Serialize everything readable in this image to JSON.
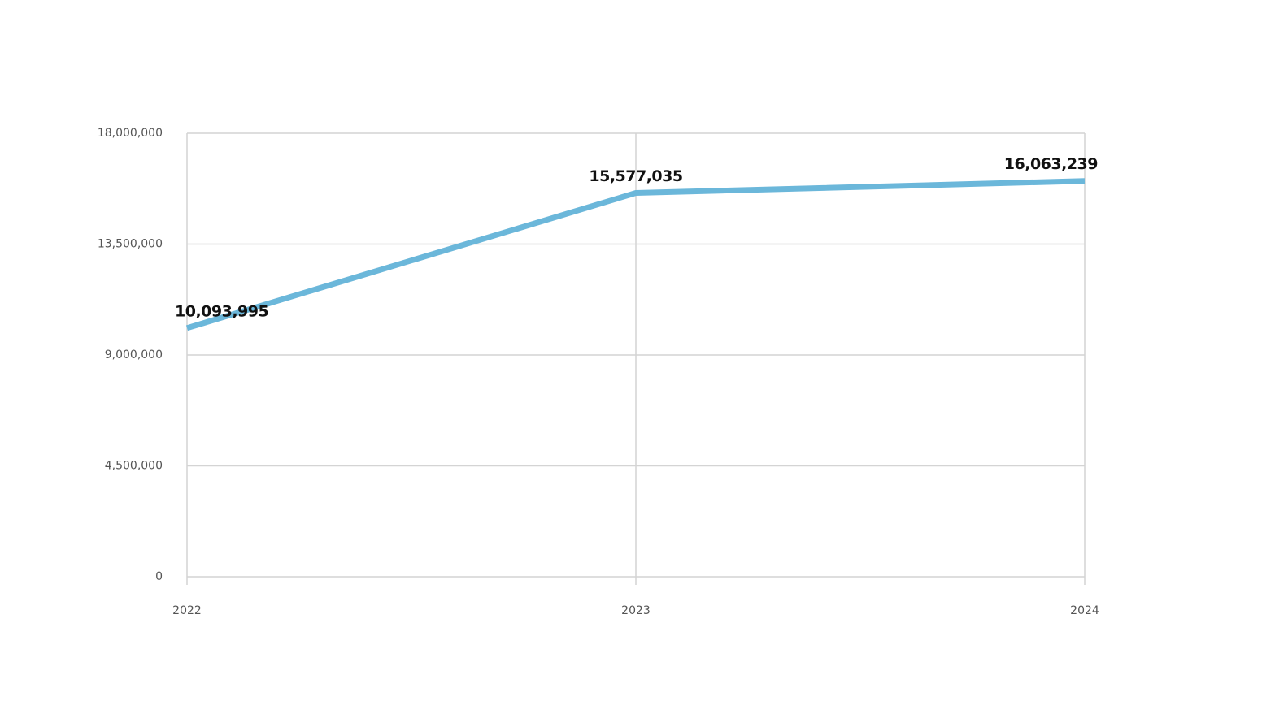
{
  "chart_data": {
    "type": "line",
    "categories": [
      "2022",
      "2023",
      "2024"
    ],
    "series": [
      {
        "color": "#6bb7da",
        "values": [
          10093995,
          15577035,
          16063239
        ],
        "value_labels": [
          "10,093,995",
          "15,577,035",
          "16,063,239"
        ]
      }
    ],
    "ylim": [
      0,
      18000000
    ],
    "yticks": [
      0,
      {
        "value": 4500000,
        "label": "4,500,000"
      },
      {
        "value": 9000000,
        "label": "9,000,000"
      },
      {
        "value": 13500000,
        "label": "13,500,000"
      },
      {
        "value": 18000000,
        "label": "18,000,000"
      }
    ],
    "grid": true
  }
}
